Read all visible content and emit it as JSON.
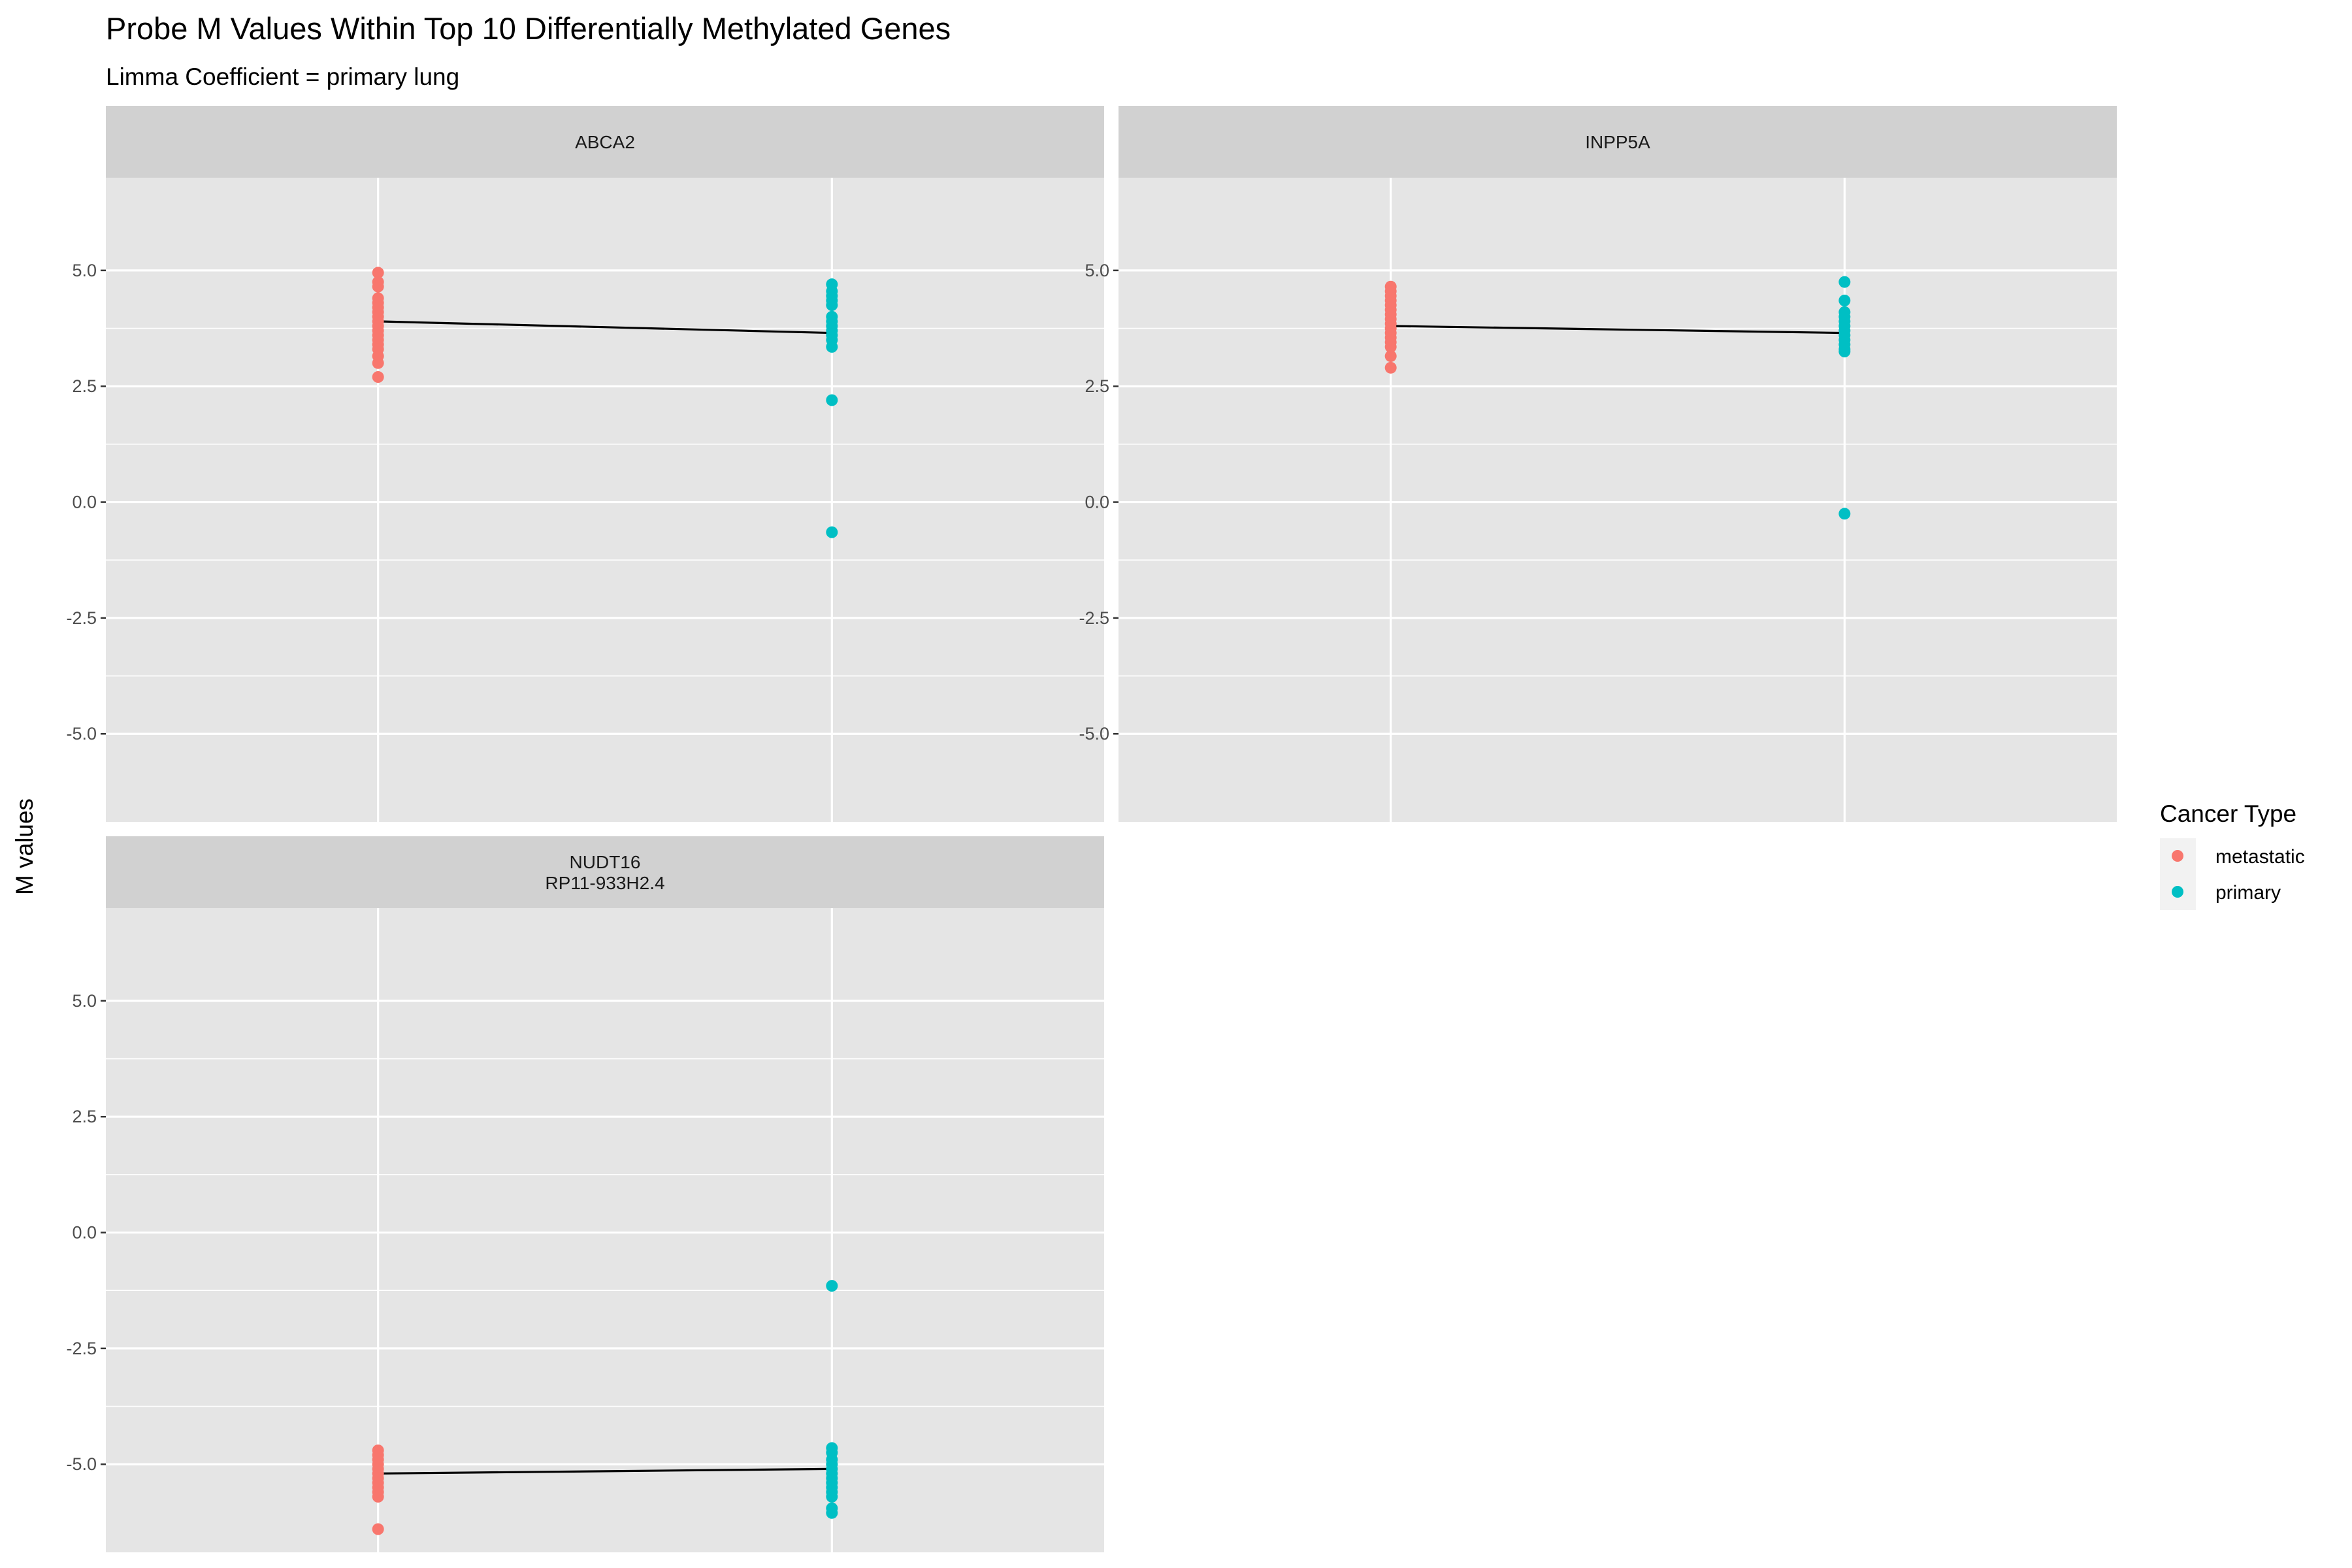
{
  "chart_data": {
    "type": "scatter",
    "title": "Probe M Values Within Top 10 Differentially Methylated Genes",
    "subtitle": "Limma Coefficient = primary lung",
    "ylabel": "M values",
    "xlabel": "",
    "ylim": [
      -6.9,
      7.0
    ],
    "yticks": [
      5.0,
      2.5,
      0.0,
      -2.5,
      -5.0
    ],
    "ytick_labels": [
      "5.0",
      "2.5",
      "0.0",
      "-2.5",
      "-5.0"
    ],
    "categories": [
      "metastatic",
      "primary"
    ],
    "grid": true,
    "legend": {
      "title": "Cancer Type",
      "position": "right",
      "entries": [
        {
          "label": "metastatic",
          "color": "#F8766D"
        },
        {
          "label": "primary",
          "color": "#00BFC4"
        }
      ]
    },
    "colors": {
      "metastatic": "#F8766D",
      "primary": "#00BFC4",
      "mean_line": "#000000"
    },
    "panels": [
      {
        "strip": [
          "ABCA2"
        ],
        "means": {
          "metastatic": 3.9,
          "primary": 3.65
        },
        "series": [
          {
            "name": "metastatic",
            "values": [
              4.95,
              4.75,
              4.65,
              4.4,
              4.3,
              4.2,
              4.1,
              4.0,
              3.9,
              3.8,
              3.7,
              3.6,
              3.5,
              3.4,
              3.3,
              3.15,
              3.0,
              2.7
            ]
          },
          {
            "name": "primary",
            "values": [
              4.7,
              4.55,
              4.45,
              4.35,
              4.25,
              4.0,
              3.9,
              3.8,
              3.7,
              3.6,
              3.5,
              3.35,
              2.2,
              -0.65
            ]
          }
        ]
      },
      {
        "strip": [
          "INPP5A"
        ],
        "means": {
          "metastatic": 3.8,
          "primary": 3.65
        },
        "series": [
          {
            "name": "metastatic",
            "values": [
              4.65,
              4.55,
              4.45,
              4.35,
              4.25,
              4.15,
              4.05,
              3.95,
              3.85,
              3.75,
              3.65,
              3.55,
              3.45,
              3.35,
              3.15,
              2.9
            ]
          },
          {
            "name": "primary",
            "values": [
              4.75,
              4.35,
              4.1,
              4.0,
              3.9,
              3.8,
              3.7,
              3.6,
              3.5,
              3.4,
              3.3,
              3.25,
              -0.25
            ]
          }
        ]
      },
      {
        "strip": [
          "NUDT16",
          "RP11-933H2.4"
        ],
        "means": {
          "metastatic": -5.2,
          "primary": -5.1
        },
        "series": [
          {
            "name": "metastatic",
            "values": [
              -4.7,
              -4.8,
              -4.9,
              -5.0,
              -5.1,
              -5.2,
              -5.3,
              -5.4,
              -5.5,
              -5.6,
              -5.7,
              -6.4
            ]
          },
          {
            "name": "primary",
            "values": [
              -1.15,
              -4.65,
              -4.75,
              -4.9,
              -5.0,
              -5.1,
              -5.2,
              -5.3,
              -5.4,
              -5.5,
              -5.6,
              -5.7,
              -5.95,
              -6.05
            ]
          }
        ]
      }
    ]
  }
}
